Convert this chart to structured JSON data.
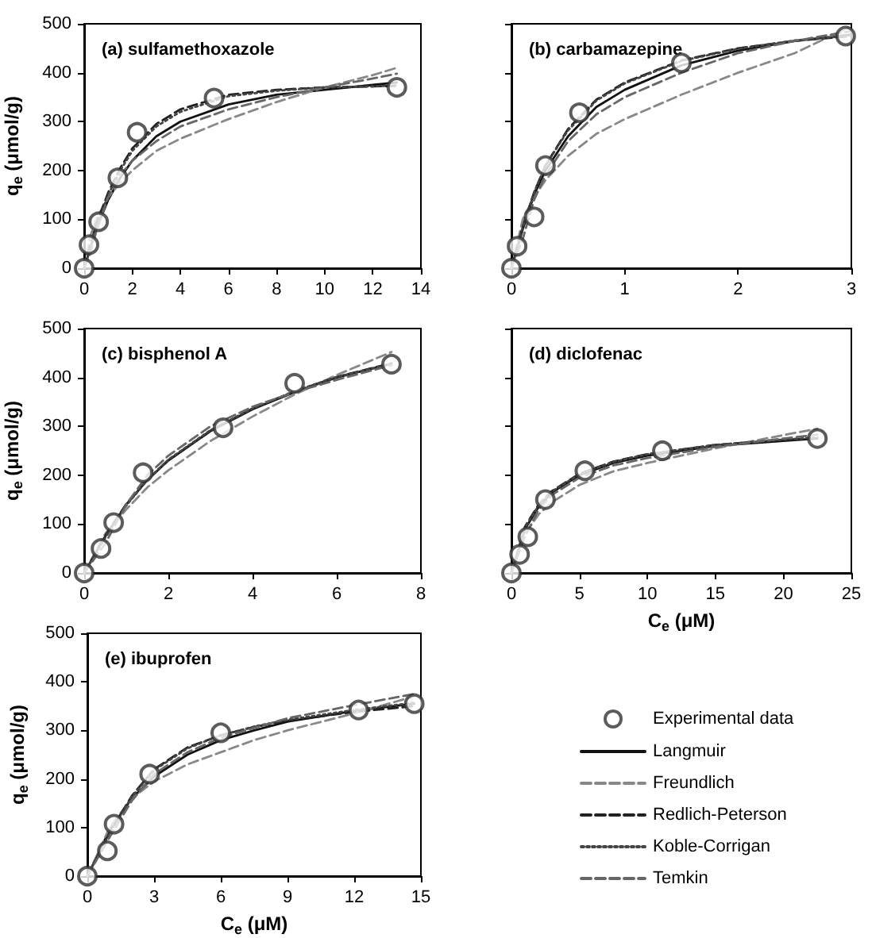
{
  "chart_data": [
    {
      "type": "line",
      "title": "(a) sulfamethoxazole",
      "ylabel": "q$_{e}$ (μmol/g)",
      "xlim": [
        0,
        14
      ],
      "xticks": [
        0,
        2,
        4,
        6,
        8,
        10,
        12,
        14
      ],
      "ylim": [
        0,
        500
      ],
      "yticks": [
        0,
        100,
        200,
        300,
        400,
        500
      ],
      "grid": false,
      "legend": false,
      "x": [
        0,
        0.25,
        0.5,
        1,
        1.5,
        2,
        3,
        4,
        6,
        8,
        10,
        12,
        13
      ],
      "series": [
        {
          "type": "scatter",
          "marker": "circle",
          "color": "#333333",
          "x": [
            0,
            0.2,
            0.6,
            1.4,
            2.2,
            5.4,
            13
          ],
          "values": [
            0,
            48,
            95,
            185,
            278,
            348,
            370
          ]
        },
        {
          "marker": "none",
          "line_style": "solid",
          "color": "#111111",
          "values": [
            0,
            40,
            80,
            140,
            185,
            220,
            270,
            300,
            335,
            355,
            365,
            375,
            380
          ]
        },
        {
          "marker": "none",
          "line_style": "dashed",
          "color": "#888888",
          "values": [
            0,
            65,
            100,
            145,
            175,
            200,
            240,
            265,
            305,
            340,
            370,
            395,
            410
          ]
        },
        {
          "marker": "none",
          "line_style": "dashed",
          "color": "#222222",
          "values": [
            0,
            45,
            90,
            155,
            205,
            245,
            295,
            325,
            355,
            365,
            370,
            372,
            373
          ]
        },
        {
          "marker": "none",
          "line_style": "dotted",
          "color": "#444444",
          "values": [
            0,
            42,
            85,
            150,
            200,
            240,
            290,
            320,
            352,
            363,
            370,
            372,
            374
          ]
        },
        {
          "marker": "none",
          "line_style": "dashed",
          "color": "#666666",
          "values": [
            0,
            30,
            75,
            145,
            190,
            220,
            260,
            290,
            325,
            350,
            370,
            388,
            398
          ]
        }
      ]
    },
    {
      "type": "line",
      "title": "(b) carbamazepine",
      "tick_labels": "x",
      "xlim": [
        0,
        3
      ],
      "xticks": [
        0,
        1,
        2,
        3
      ],
      "ylim": [
        0,
        500
      ],
      "yticks": [
        0,
        100,
        200,
        300,
        400,
        500
      ],
      "grid": false,
      "legend": false,
      "x": [
        0,
        0.1,
        0.2,
        0.3,
        0.5,
        0.75,
        1,
        1.5,
        2,
        2.5,
        3
      ],
      "series": [
        {
          "type": "scatter",
          "marker": "circle",
          "color": "#333333",
          "x": [
            0,
            0.05,
            0.2,
            0.3,
            0.6,
            1.5,
            2.95
          ],
          "values": [
            0,
            45,
            105,
            210,
            318,
            420,
            475
          ]
        },
        {
          "marker": "none",
          "line_style": "solid",
          "color": "#111111",
          "values": [
            0,
            80,
            150,
            200,
            270,
            330,
            365,
            415,
            445,
            465,
            478
          ]
        },
        {
          "marker": "none",
          "line_style": "dashed",
          "color": "#888888",
          "values": [
            0,
            100,
            145,
            180,
            230,
            275,
            305,
            355,
            400,
            440,
            495
          ]
        },
        {
          "marker": "none",
          "line_style": "dashed",
          "color": "#222222",
          "values": [
            0,
            85,
            155,
            210,
            285,
            345,
            380,
            425,
            450,
            465,
            475
          ]
        },
        {
          "marker": "none",
          "line_style": "dotted",
          "color": "#444444",
          "values": [
            0,
            85,
            155,
            210,
            282,
            343,
            378,
            424,
            449,
            466,
            476
          ]
        },
        {
          "marker": "none",
          "line_style": "dashed",
          "color": "#666666",
          "values": [
            0,
            60,
            140,
            190,
            260,
            315,
            350,
            400,
            440,
            465,
            485
          ]
        }
      ]
    },
    {
      "type": "line",
      "title": "(c) bisphenol A",
      "ylabel": "q$_{e}$ (μmol/g)",
      "xlim": [
        0,
        8
      ],
      "xticks": [
        0,
        2,
        4,
        6,
        8
      ],
      "ylim": [
        0,
        500
      ],
      "yticks": [
        0,
        100,
        200,
        300,
        400,
        500
      ],
      "grid": false,
      "legend": false,
      "x": [
        0,
        0.5,
        1,
        1.5,
        2,
        3,
        4,
        5,
        6,
        7.3
      ],
      "series": [
        {
          "type": "scatter",
          "marker": "circle",
          "color": "#333333",
          "x": [
            0,
            0.4,
            0.7,
            1.4,
            3.3,
            5,
            7.3
          ],
          "values": [
            0,
            50,
            103,
            205,
            297,
            388,
            427
          ]
        },
        {
          "marker": "none",
          "line_style": "solid",
          "color": "#111111",
          "values": [
            0,
            75,
            140,
            190,
            230,
            290,
            335,
            370,
            400,
            428
          ]
        },
        {
          "marker": "none",
          "line_style": "dashed",
          "color": "#888888",
          "values": [
            0,
            80,
            130,
            175,
            210,
            270,
            320,
            365,
            405,
            452
          ]
        },
        {
          "marker": "none",
          "line_style": "dashed",
          "color": "#222222",
          "values": [
            0,
            76,
            141,
            191,
            231,
            291,
            336,
            371,
            401,
            429
          ]
        },
        {
          "marker": "none",
          "line_style": "dotted",
          "color": "#444444",
          "values": [
            0,
            72,
            138,
            190,
            232,
            292,
            337,
            372,
            401,
            428
          ]
        },
        {
          "marker": "none",
          "line_style": "dashed",
          "color": "#666666",
          "values": [
            0,
            60,
            140,
            200,
            240,
            300,
            340,
            370,
            395,
            425
          ]
        }
      ]
    },
    {
      "type": "line",
      "title": "(d) diclofenac",
      "xlabel": "C$_{e}$ (μM)",
      "tick_labels": "x",
      "xlim": [
        0,
        25
      ],
      "xticks": [
        0,
        5,
        10,
        15,
        20,
        25
      ],
      "ylim": [
        0,
        500
      ],
      "yticks": [
        0,
        100,
        200,
        300,
        400,
        500
      ],
      "grid": false,
      "legend": false,
      "x": [
        0,
        1,
        2,
        3,
        5,
        7.5,
        10,
        15,
        20,
        22.5
      ],
      "series": [
        {
          "type": "scatter",
          "marker": "circle",
          "color": "#333333",
          "x": [
            0,
            0.6,
            1.2,
            2.5,
            5.4,
            11.1,
            22.5
          ],
          "values": [
            0,
            38,
            74,
            150,
            209,
            250,
            275
          ]
        },
        {
          "marker": "none",
          "line_style": "solid",
          "color": "#111111",
          "values": [
            0,
            90,
            135,
            165,
            200,
            225,
            240,
            260,
            270,
            275
          ]
        },
        {
          "marker": "none",
          "line_style": "dashed",
          "color": "#888888",
          "values": [
            0,
            80,
            120,
            145,
            180,
            208,
            225,
            255,
            282,
            295
          ]
        },
        {
          "marker": "none",
          "line_style": "dashed",
          "color": "#222222",
          "values": [
            0,
            95,
            140,
            168,
            203,
            228,
            243,
            262,
            272,
            276
          ]
        },
        {
          "marker": "none",
          "line_style": "dotted",
          "color": "#444444",
          "values": [
            0,
            93,
            138,
            167,
            202,
            227,
            243,
            262,
            273,
            277
          ]
        },
        {
          "marker": "none",
          "line_style": "dashed",
          "color": "#666666",
          "values": [
            0,
            75,
            130,
            160,
            195,
            220,
            235,
            258,
            275,
            283
          ]
        }
      ]
    },
    {
      "type": "line",
      "title": "(e) ibuprofen",
      "xlabel": "C$_{e}$ (μM)",
      "ylabel": "q$_{e}$ (μmol/g)",
      "xlim": [
        0,
        15
      ],
      "xticks": [
        0,
        3,
        6,
        9,
        12,
        15
      ],
      "ylim": [
        0,
        500
      ],
      "yticks": [
        0,
        100,
        200,
        300,
        400,
        500
      ],
      "grid": false,
      "legend": "right",
      "x": [
        0,
        1,
        2,
        3,
        4.5,
        6,
        7.5,
        9,
        12,
        14.7
      ],
      "series": [
        {
          "name": "Experimental data",
          "type": "scatter",
          "marker": "circle",
          "color": "#333333",
          "x": [
            0,
            0.9,
            1.2,
            2.8,
            6,
            12.2,
            14.7
          ],
          "values": [
            0,
            52,
            107,
            210,
            295,
            342,
            355
          ]
        },
        {
          "name": "Langmuir",
          "marker": "none",
          "line_style": "solid",
          "color": "#111111",
          "values": [
            0,
            95,
            160,
            205,
            250,
            280,
            300,
            318,
            340,
            355
          ]
        },
        {
          "name": "Freundlich",
          "marker": "none",
          "line_style": "dashed",
          "color": "#888888",
          "values": [
            0,
            100,
            160,
            195,
            230,
            255,
            280,
            300,
            335,
            370
          ]
        },
        {
          "name": "Redlich-Peterson",
          "marker": "none",
          "line_style": "dashed",
          "color": "#222222",
          "values": [
            0,
            90,
            165,
            220,
            265,
            290,
            307,
            320,
            338,
            350
          ]
        },
        {
          "name": "Koble-Corrigan",
          "marker": "none",
          "line_style": "dotted",
          "color": "#444444",
          "values": [
            0,
            88,
            163,
            218,
            263,
            290,
            308,
            322,
            342,
            357
          ]
        },
        {
          "name": "Temkin",
          "marker": "none",
          "line_style": "dashed",
          "color": "#666666",
          "values": [
            0,
            80,
            155,
            210,
            255,
            285,
            305,
            325,
            352,
            375
          ]
        }
      ]
    }
  ]
}
